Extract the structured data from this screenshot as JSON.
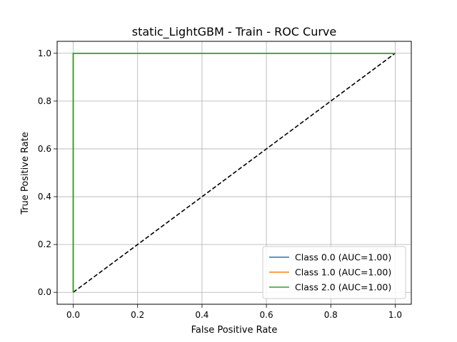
{
  "chart_data": {
    "type": "line",
    "title": "static_LightGBM - Train - ROC Curve",
    "xlabel": "False Positive Rate",
    "ylabel": "True Positive Rate",
    "xlim": [
      -0.05,
      1.05
    ],
    "ylim": [
      -0.05,
      1.05
    ],
    "xticks": [
      0.0,
      0.2,
      0.4,
      0.6,
      0.8,
      1.0
    ],
    "yticks": [
      0.0,
      0.2,
      0.4,
      0.6,
      0.8,
      1.0
    ],
    "xtick_labels": [
      "0.0",
      "0.2",
      "0.4",
      "0.6",
      "0.8",
      "1.0"
    ],
    "ytick_labels": [
      "0.0",
      "0.2",
      "0.4",
      "0.6",
      "0.8",
      "1.0"
    ],
    "grid": true,
    "legend_position": "lower-right",
    "series": [
      {
        "name": "Class 0.0 (AUC=1.00)",
        "color": "#1f77b4",
        "x": [
          0.0,
          0.0,
          1.0
        ],
        "y": [
          0.0,
          1.0,
          1.0
        ]
      },
      {
        "name": "Class 1.0 (AUC=1.00)",
        "color": "#ff7f0e",
        "x": [
          0.0,
          0.0,
          1.0
        ],
        "y": [
          0.0,
          1.0,
          1.0
        ]
      },
      {
        "name": "Class 2.0 (AUC=1.00)",
        "color": "#2ca02c",
        "x": [
          0.0,
          0.0,
          1.0
        ],
        "y": [
          0.0,
          1.0,
          1.0
        ]
      }
    ],
    "reference_line": {
      "x": [
        0.0,
        1.0
      ],
      "y": [
        0.0,
        1.0
      ],
      "color": "#000000",
      "style": "dashed"
    }
  }
}
